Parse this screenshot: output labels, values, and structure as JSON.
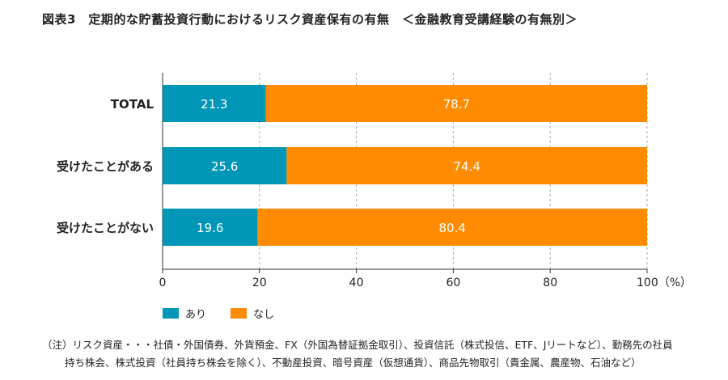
{
  "title": "図表3　定期的な貯蓄投資行動におけるリスク資産保有の有無　＜金融教育受講経験の有無別＞",
  "colors": {
    "あり": "#0096b7",
    "なし": "#ff8c00"
  },
  "chart_data": {
    "type": "bar",
    "orientation": "horizontal",
    "stacked": true,
    "categories": [
      "TOTAL",
      "受けたことがある",
      "受けたことがない"
    ],
    "series": [
      {
        "name": "あり",
        "values": [
          21.3,
          25.6,
          19.6
        ]
      },
      {
        "name": "なし",
        "values": [
          78.7,
          74.4,
          80.4
        ]
      }
    ],
    "xlim": [
      0,
      100
    ],
    "xticks": [
      "0",
      "20",
      "40",
      "60",
      "80",
      "100（%）"
    ],
    "grid": "vertical dashed",
    "legend": "bottom-left"
  },
  "notes": [
    "（注）リスク資産・・・社債・外国債券、外貨預金、FX（外国為替証拠金取引）、投資信託（株式投信、ETF、Jリートなど）、勤務先の社員",
    "持ち株会、株式投資（社員持ち株会を除く）、不動産投資、暗号資産（仮想通貨）、商品先物取引（貴金属、農産物、石油など）"
  ]
}
